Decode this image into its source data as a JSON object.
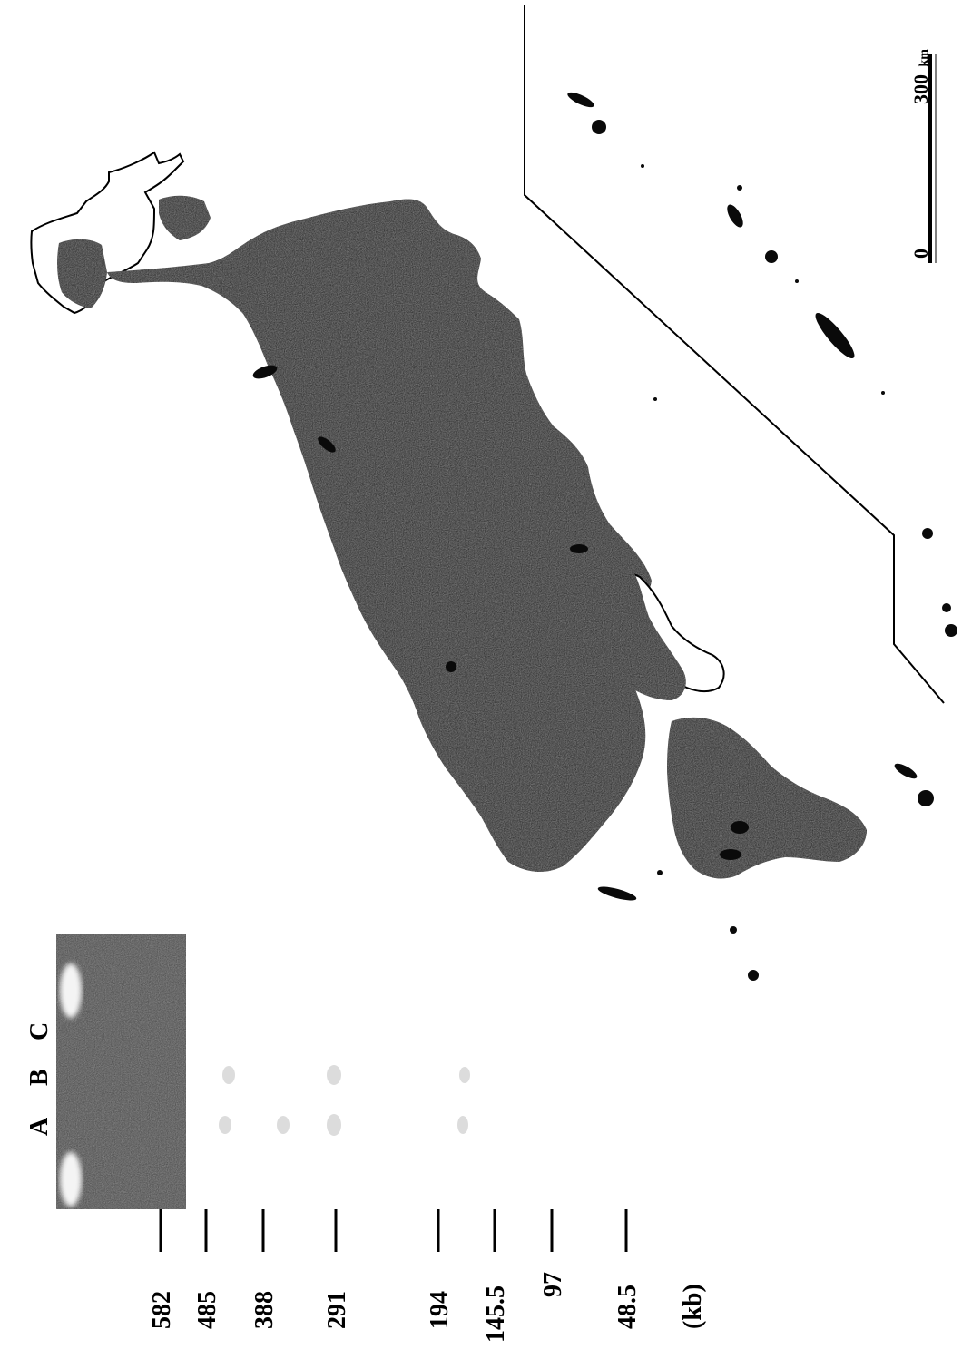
{
  "gel": {
    "lanes": [
      "A",
      "B",
      "C"
    ],
    "markers": [
      "582",
      "485",
      "388",
      "291",
      "194",
      "145.5",
      "97",
      "48.5"
    ],
    "unit": "(kb)"
  },
  "map": {
    "scale_bar": {
      "start": "0",
      "end": "300",
      "unit": "km"
    }
  },
  "colors": {
    "land_fill": "#111111",
    "outline": "#000000",
    "gel_background": "#4a4a4a",
    "band": "#e8e8e8"
  }
}
